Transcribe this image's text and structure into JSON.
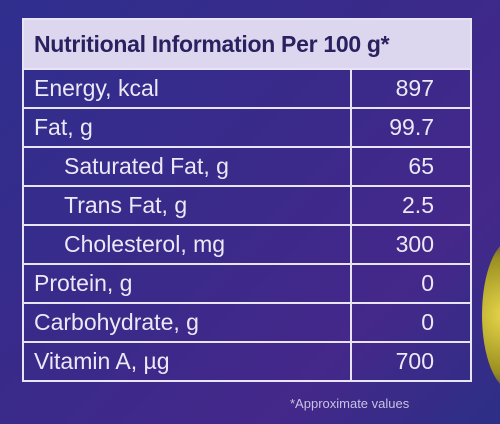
{
  "table": {
    "title": "Nutritional Information Per 100 g*",
    "rows": [
      [
        "Energy, kcal",
        "897"
      ],
      [
        "Fat, g",
        "99.7"
      ],
      [
        "Saturated Fat, g",
        "65"
      ],
      [
        "Trans Fat, g",
        "2.5"
      ],
      [
        "Cholesterol, mg",
        "300"
      ],
      [
        "Protein, g",
        "0"
      ],
      [
        "Carbohydrate, g",
        "0"
      ],
      [
        "Vitamin A, µg",
        "700"
      ]
    ]
  },
  "footnote": "*Approximate values"
}
